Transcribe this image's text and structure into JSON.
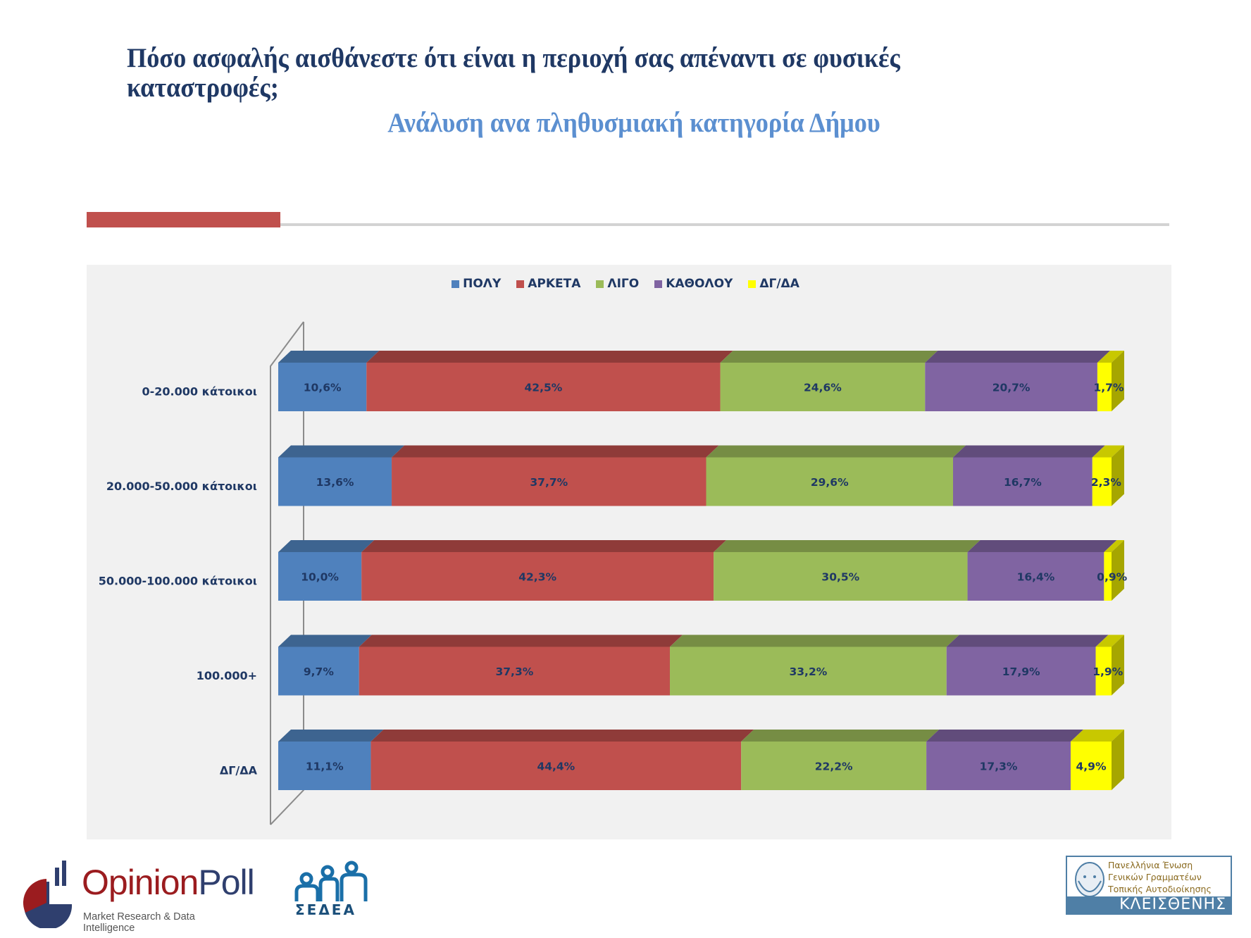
{
  "header": {
    "title": "Πόσο ασφαλής αισθάνεστε ότι είναι η περιοχή σας απέναντι σε φυσικές καταστροφές;",
    "subtitle": "Ανάλυση ανα πληθυσμιακή κατηγορία Δήμου"
  },
  "colors": {
    "title": "#1f3864",
    "subtitle": "#5b8fd0",
    "accent": "#c0504d",
    "label_text": "#1f3864"
  },
  "chart_data": {
    "type": "bar",
    "orientation": "horizontal",
    "stacked": "100%",
    "style": "3d",
    "title": "",
    "xlabel": "",
    "ylabel": "",
    "xlim": [
      0,
      100
    ],
    "grid": false,
    "legend_position": "top",
    "categories": [
      "0-20.000 κάτοικοι",
      "20.000-50.000 κάτοικοι",
      "50.000-100.000 κάτοικοι",
      "100.000+",
      "ΔΓ/ΔΑ"
    ],
    "series": [
      {
        "name": "ΠΟΛΥ",
        "color": "#4f81bd",
        "top_color": "#3d6490",
        "values": [
          10.6,
          13.6,
          10.0,
          9.7,
          11.1
        ],
        "labels": [
          "10,6%",
          "13,6%",
          "10,0%",
          "9,7%",
          "11,1%"
        ]
      },
      {
        "name": "ΑΡΚΕΤΑ",
        "color": "#c0504d",
        "top_color": "#8f3b39",
        "values": [
          42.5,
          37.7,
          42.3,
          37.3,
          44.4
        ],
        "labels": [
          "42,5%",
          "37,7%",
          "42,3%",
          "37,3%",
          "44,4%"
        ]
      },
      {
        "name": "ΛΙΓΟ",
        "color": "#9bbb59",
        "top_color": "#768d44",
        "values": [
          24.6,
          29.6,
          30.5,
          33.2,
          22.2
        ],
        "labels": [
          "24,6%",
          "29,6%",
          "30,5%",
          "33,2%",
          "22,2%"
        ]
      },
      {
        "name": "ΚΑΘΟΛΟΥ",
        "color": "#8064a2",
        "top_color": "#614c7b",
        "values": [
          20.7,
          16.7,
          16.4,
          17.9,
          17.3
        ],
        "labels": [
          "20,7%",
          "16,7%",
          "16,4%",
          "17,9%",
          "17,3%"
        ]
      },
      {
        "name": "ΔΓ/ΔΑ",
        "color": "#ffff00",
        "top_color": "#c8c800",
        "side_color": "#a6a600",
        "values": [
          1.7,
          2.3,
          0.9,
          1.9,
          4.9
        ],
        "labels": [
          "1,7%",
          "2,3%",
          "0,9%",
          "1,9%",
          "4,9%"
        ]
      }
    ]
  },
  "footer": {
    "opinionpoll": {
      "name_part1": "Opinion",
      "name_part2": "Poll",
      "tagline": "Market Research & Data Intelligence"
    },
    "sedea": {
      "name": "ΣΕΔΕΑ"
    },
    "kleisthenis": {
      "lines": [
        "Πανελλήνια Ένωση",
        "Γενικών Γραμματέων",
        "Τοπικής Αυτοδιοίκησης"
      ],
      "name": "ΚΛΕΙΣΘΕΝΗΣ"
    }
  }
}
